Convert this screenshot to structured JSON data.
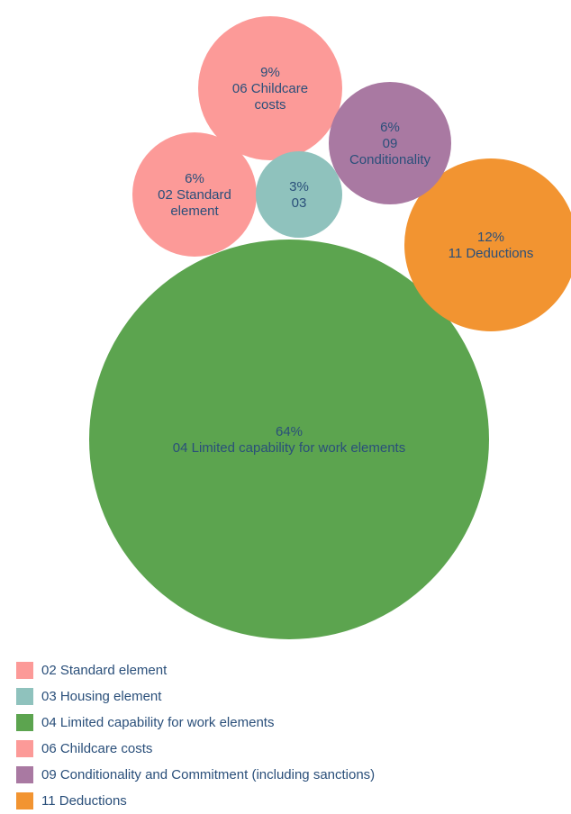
{
  "chart_data": {
    "type": "bubble",
    "bubbles": [
      {
        "percent": "64%",
        "label": [
          "04 Limited capability for work elements"
        ],
        "value": 64,
        "color": "#5ca44f"
      },
      {
        "percent": "12%",
        "label": [
          "11 Deductions"
        ],
        "value": 12,
        "color": "#f29431"
      },
      {
        "percent": "9%",
        "label": [
          "06 Childcare",
          "costs"
        ],
        "value": 9,
        "color": "#fc9a98"
      },
      {
        "percent": "6%",
        "label": [
          "02 Standard",
          "element"
        ],
        "value": 6,
        "color": "#fc9a98"
      },
      {
        "percent": "6%",
        "label": [
          "09",
          "Conditionality"
        ],
        "value": 6,
        "color": "#a979a2"
      },
      {
        "percent": "3%",
        "label": [
          "03"
        ],
        "value": 3,
        "color": "#8fc2bd"
      }
    ],
    "legend": [
      {
        "label": "02 Standard element",
        "color": "#fc9a98"
      },
      {
        "label": "03 Housing element",
        "color": "#8fc2bd"
      },
      {
        "label": "04 Limited capability for work elements",
        "color": "#5ca44f"
      },
      {
        "label": "06 Childcare costs",
        "color": "#fc9a98"
      },
      {
        "label": "09 Conditionality and Commitment (including sanctions)",
        "color": "#a979a2"
      },
      {
        "label": "11 Deductions",
        "color": "#f29431"
      }
    ]
  }
}
